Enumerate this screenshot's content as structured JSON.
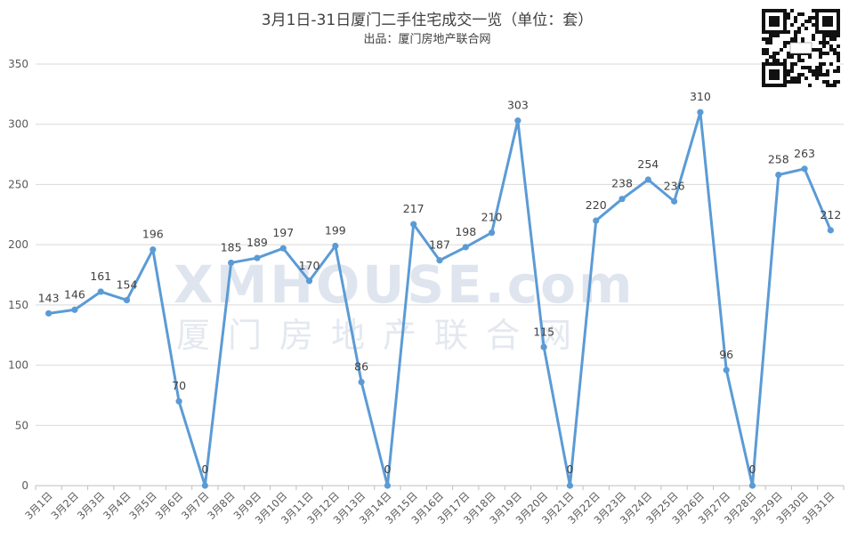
{
  "chart_data": {
    "type": "line",
    "title": "3月1日-31日厦门二手住宅成交一览（单位：套）",
    "subtitle": "出品：厦门房地产联合网",
    "categories": [
      "3月1日",
      "3月2日",
      "3月3日",
      "3月4日",
      "3月5日",
      "3月6日",
      "3月7日",
      "3月8日",
      "3月9日",
      "3月10日",
      "3月11日",
      "3月12日",
      "3月13日",
      "3月14日",
      "3月15日",
      "3月16日",
      "3月17日",
      "3月18日",
      "3月19日",
      "3月20日",
      "3月21日",
      "3月22日",
      "3月23日",
      "3月24日",
      "3月25日",
      "3月26日",
      "3月27日",
      "3月28日",
      "3月29日",
      "3月30日",
      "3月31日"
    ],
    "values": [
      143,
      146,
      161,
      154,
      196,
      70,
      0,
      185,
      189,
      197,
      170,
      199,
      86,
      0,
      217,
      187,
      198,
      210,
      303,
      115,
      0,
      220,
      238,
      254,
      236,
      310,
      96,
      0,
      258,
      263,
      212
    ],
    "ylim": [
      0,
      350
    ],
    "yticks": [
      0,
      50,
      100,
      150,
      200,
      250,
      300,
      350
    ],
    "grid": true,
    "line_color": "#5b9bd5",
    "grid_color": "#d9d9d9"
  },
  "watermark": {
    "latin": "XMHOUSE.com",
    "cjk": "厦门房地产联合网"
  },
  "qr_code": "qr-code-icon"
}
